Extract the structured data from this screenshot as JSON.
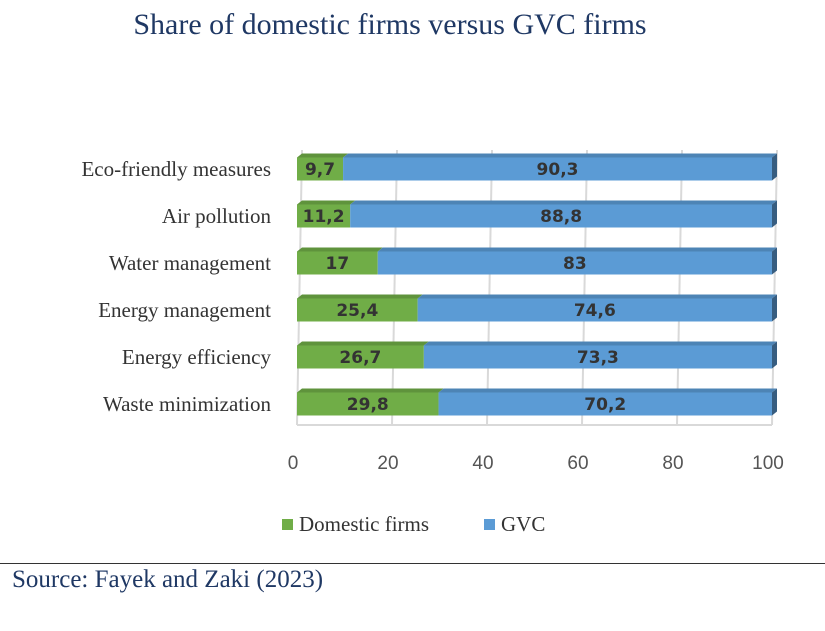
{
  "title": "Share of domestic firms versus GVC firms",
  "source": "Source: Fayek and Zaki (2023)",
  "chart_data": {
    "type": "bar",
    "orientation": "horizontal",
    "stacked": true,
    "title": "Share of domestic firms versus GVC firms",
    "categories": [
      "Eco-friendly measures",
      "Air pollution",
      "Water management",
      "Energy management",
      "Energy efficiency",
      "Waste minimization"
    ],
    "series": [
      {
        "name": "Domestic firms",
        "color": "#70ad47",
        "values": [
          9.7,
          11.2,
          17,
          25.4,
          26.7,
          29.8
        ],
        "labels": [
          "9,7",
          "11,2",
          "17",
          "25,4",
          "26,7",
          "29,8"
        ]
      },
      {
        "name": "GVC",
        "color": "#5b9bd5",
        "values": [
          90.3,
          88.8,
          83,
          74.6,
          73.3,
          70.2
        ],
        "labels": [
          "90,3",
          "88,8",
          "83",
          "74,6",
          "73,3",
          "70,2"
        ]
      }
    ],
    "xlim": [
      0,
      100
    ],
    "xticks": [
      0,
      20,
      40,
      60,
      80,
      100
    ],
    "grid": true,
    "legend_position": "bottom"
  }
}
